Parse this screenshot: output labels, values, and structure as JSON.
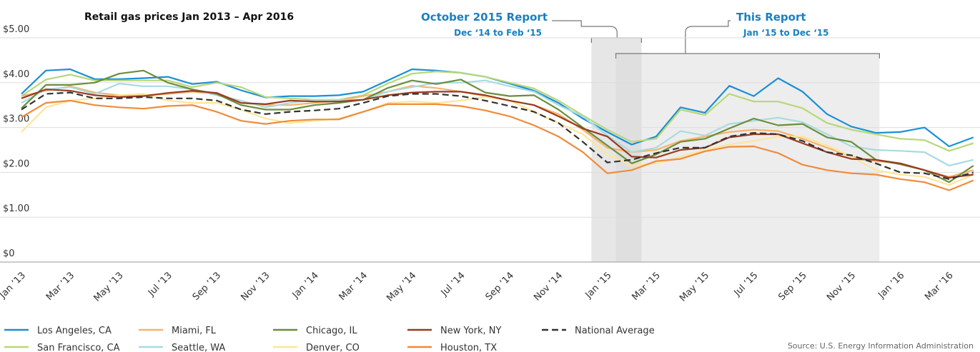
{
  "chart_data": {
    "type": "line",
    "title": "Retail gas prices Jan 2013 – Apr 2016",
    "categories": [
      "Jan ’13",
      null,
      "Mar ’13",
      null,
      "May ’13",
      null,
      "Jul ’13",
      null,
      "Sep ’13",
      null,
      "Nov ’13",
      null,
      "Jan ’14",
      null,
      "Mar ’14",
      null,
      "May ’14",
      null,
      "Jul ’14",
      null,
      "Sep ’14",
      null,
      "Nov ’14",
      null,
      "Jan ’15",
      null,
      "Mar ’15",
      null,
      "May ’15",
      null,
      "Jul ’15",
      null,
      "Sep ’15",
      null,
      "Nov ’15",
      null,
      "Jan ’16",
      null,
      "Mar ’16",
      null
    ],
    "ylim": [
      0,
      5
    ],
    "yticks": [
      {
        "value": 0,
        "label": "$0"
      },
      {
        "value": 1,
        "label": "$1.00"
      },
      {
        "value": 2,
        "label": "$2.00"
      },
      {
        "value": 3,
        "label": "$3.00"
      },
      {
        "value": 4,
        "label": "$4.00"
      },
      {
        "value": 5,
        "label": "$5.00"
      }
    ],
    "grid": true,
    "legend": "bottom",
    "annotations": [
      "October 2015 Report",
      "Dec ‘14 to Feb ‘15",
      "This Report",
      "Jan ‘15 to Dec ‘15"
    ],
    "source": "Source:  U.S. Energy Information Administration",
    "series": [
      {
        "name": "Los Angeles, CA",
        "color": "#1a8fd6",
        "values": [
          3.75,
          4.27,
          4.3,
          4.08,
          4.08,
          4.1,
          4.13,
          3.97,
          4.02,
          3.83,
          3.67,
          3.7,
          3.7,
          3.72,
          3.8,
          4.05,
          4.3,
          4.27,
          4.22,
          4.13,
          3.98,
          3.82,
          3.55,
          3.2,
          2.9,
          2.62,
          2.8,
          3.45,
          3.33,
          3.93,
          3.7,
          4.1,
          3.8,
          3.3,
          3.02,
          2.88,
          2.9,
          3.0,
          2.58,
          2.78
        ]
      },
      {
        "name": "San Francisco, CA",
        "color": "#b7d77a",
        "values": [
          3.7,
          4.07,
          4.18,
          4.05,
          4.05,
          4.05,
          4.05,
          3.9,
          4.0,
          3.9,
          3.68,
          3.65,
          3.62,
          3.62,
          3.72,
          3.98,
          4.2,
          4.25,
          4.22,
          4.13,
          4.0,
          3.87,
          3.6,
          3.27,
          2.95,
          2.68,
          2.75,
          3.4,
          3.28,
          3.75,
          3.58,
          3.58,
          3.43,
          3.1,
          2.95,
          2.85,
          2.75,
          2.72,
          2.48,
          2.65
        ]
      },
      {
        "name": "Miami, FL",
        "color": "#f7b26b",
        "values": [
          3.7,
          3.82,
          3.92,
          3.78,
          3.72,
          3.72,
          3.75,
          3.8,
          3.75,
          3.55,
          3.5,
          3.5,
          3.55,
          3.6,
          3.7,
          3.8,
          3.93,
          3.88,
          3.8,
          3.7,
          3.6,
          3.5,
          3.3,
          2.95,
          2.55,
          2.45,
          2.5,
          2.7,
          2.8,
          2.9,
          2.95,
          2.92,
          2.75,
          2.55,
          2.35,
          2.25,
          2.2,
          2.05,
          1.9,
          2.05
        ]
      },
      {
        "name": "Seattle, WA",
        "color": "#a8dbe0",
        "values": [
          3.55,
          3.85,
          3.9,
          3.75,
          3.98,
          3.92,
          3.92,
          3.85,
          3.72,
          3.6,
          3.45,
          3.55,
          3.62,
          3.62,
          3.62,
          3.8,
          3.9,
          4.0,
          4.0,
          4.05,
          3.92,
          3.8,
          3.5,
          3.25,
          2.82,
          2.45,
          2.55,
          2.92,
          2.82,
          3.08,
          3.15,
          3.22,
          3.12,
          2.85,
          2.58,
          2.5,
          2.48,
          2.45,
          2.15,
          2.28
        ]
      },
      {
        "name": "Chicago, IL",
        "color": "#6b8e3b",
        "values": [
          3.43,
          3.95,
          3.95,
          4.0,
          4.2,
          4.27,
          4.0,
          3.85,
          3.75,
          3.5,
          3.4,
          3.4,
          3.5,
          3.55,
          3.62,
          3.88,
          4.05,
          3.97,
          4.07,
          3.78,
          3.7,
          3.72,
          3.4,
          3.0,
          2.6,
          2.2,
          2.4,
          2.68,
          2.75,
          2.98,
          3.2,
          3.05,
          3.08,
          2.78,
          2.68,
          2.28,
          2.18,
          2.05,
          1.78,
          2.15
        ]
      },
      {
        "name": "Denver, CO",
        "color": "#fde59a",
        "values": [
          2.9,
          3.45,
          3.6,
          3.65,
          3.72,
          3.75,
          3.6,
          3.55,
          3.55,
          3.4,
          3.2,
          3.1,
          3.15,
          3.2,
          3.35,
          3.55,
          3.58,
          3.55,
          3.6,
          3.68,
          3.6,
          3.35,
          3.1,
          2.85,
          2.4,
          2.15,
          2.2,
          2.35,
          2.5,
          2.62,
          2.7,
          2.8,
          2.8,
          2.6,
          2.35,
          2.05,
          1.95,
          1.9,
          1.72,
          1.95
        ]
      },
      {
        "name": "New York, NY",
        "color": "#9a3b1f",
        "values": [
          3.65,
          3.85,
          3.82,
          3.72,
          3.68,
          3.7,
          3.77,
          3.82,
          3.77,
          3.55,
          3.52,
          3.6,
          3.58,
          3.58,
          3.62,
          3.72,
          3.78,
          3.8,
          3.8,
          3.72,
          3.6,
          3.5,
          3.25,
          2.98,
          2.8,
          2.35,
          2.33,
          2.5,
          2.55,
          2.78,
          2.85,
          2.85,
          2.65,
          2.45,
          2.3,
          2.28,
          2.2,
          2.05,
          1.88,
          1.95
        ]
      },
      {
        "name": "Houston, TX",
        "color": "#f08b3a",
        "values": [
          3.23,
          3.55,
          3.6,
          3.5,
          3.45,
          3.42,
          3.48,
          3.5,
          3.35,
          3.15,
          3.08,
          3.15,
          3.18,
          3.18,
          3.35,
          3.52,
          3.52,
          3.52,
          3.48,
          3.38,
          3.25,
          3.05,
          2.8,
          2.45,
          1.98,
          2.05,
          2.25,
          2.3,
          2.47,
          2.57,
          2.58,
          2.43,
          2.17,
          2.05,
          1.98,
          1.95,
          1.85,
          1.78,
          1.6,
          1.82
        ]
      },
      {
        "name": "National Average",
        "color": "#333333",
        "style": "dashed",
        "values": [
          3.4,
          3.75,
          3.78,
          3.65,
          3.65,
          3.68,
          3.65,
          3.65,
          3.6,
          3.4,
          3.3,
          3.35,
          3.38,
          3.42,
          3.55,
          3.7,
          3.75,
          3.75,
          3.7,
          3.6,
          3.48,
          3.35,
          3.1,
          2.68,
          2.22,
          2.28,
          2.43,
          2.55,
          2.55,
          2.8,
          2.88,
          2.85,
          2.7,
          2.45,
          2.38,
          2.2,
          2.0,
          1.98,
          1.85,
          2.0
        ]
      }
    ]
  }
}
